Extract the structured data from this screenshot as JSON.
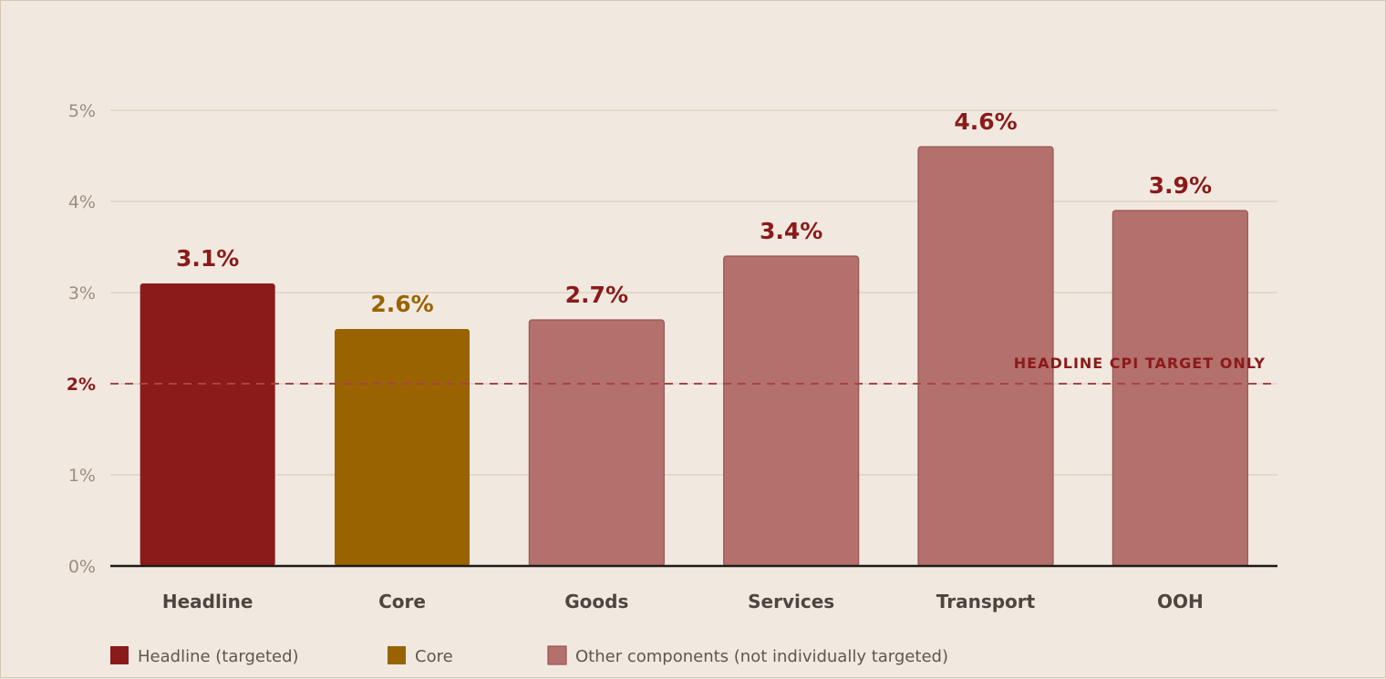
{
  "chart_data": {
    "type": "bar",
    "categories": [
      "Headline",
      "Core",
      "Goods",
      "Services",
      "Transport",
      "OOH"
    ],
    "values": [
      3.1,
      2.6,
      2.7,
      3.4,
      4.6,
      3.9
    ],
    "value_labels": [
      "3.1%",
      "2.6%",
      "2.7%",
      "3.4%",
      "4.6%",
      "3.9%"
    ],
    "bar_groups": [
      "headline",
      "core",
      "other",
      "other",
      "other",
      "other"
    ],
    "ylim": [
      0,
      5
    ],
    "yticks": [
      0,
      1,
      2,
      3,
      4,
      5
    ],
    "ytick_labels": [
      "0%",
      "1%",
      "2%",
      "3%",
      "4%",
      "5%"
    ],
    "grid": true,
    "reference_line": {
      "value": 2,
      "label": "HEADLINE CPI TARGET ONLY",
      "style": "dashed"
    },
    "legend": {
      "placement": "bottom-left",
      "entries": [
        {
          "group": "headline",
          "label": "Headline (targeted)"
        },
        {
          "group": "core",
          "label": "Core"
        },
        {
          "group": "other",
          "label": "Other components (not individually targeted)"
        }
      ]
    },
    "colors": {
      "headline": "#8b1a1a",
      "core": "#996300",
      "other": "#b4706c",
      "target": "#8b1a1a",
      "grid": "#ddd2c6",
      "axis": "#1e1a18"
    }
  }
}
